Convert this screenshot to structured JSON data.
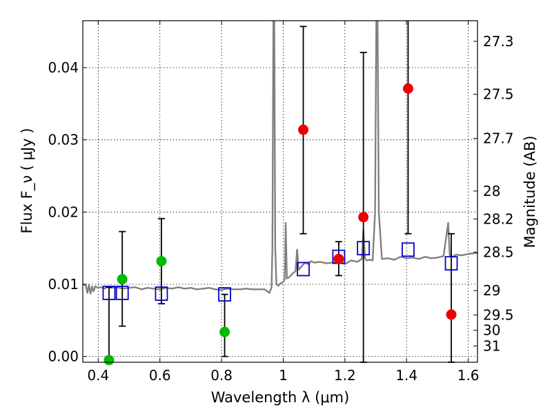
{
  "chart_data": {
    "type": "scatter",
    "title": "",
    "xlabel": "Wavelength  λ (μm)",
    "ylabel": "Flux  F_ν  ( μJy )",
    "ylabel_right": "Magnitude (AB)",
    "xlim": [
      0.35,
      1.63
    ],
    "ylim": [
      -0.0008,
      0.0465
    ],
    "grid": true,
    "x_ticks": [
      0.4,
      0.6,
      0.8,
      1.0,
      1.2,
      1.4,
      1.6
    ],
    "x_tick_labels": [
      "0.4",
      "0.6",
      "0.8",
      "1",
      "1.2",
      "1.4",
      "1.6"
    ],
    "y_ticks": [
      0.0,
      0.01,
      0.02,
      0.03,
      0.04
    ],
    "y_tick_labels": [
      "0.00",
      "0.01",
      "0.02",
      "0.03",
      "0.04"
    ],
    "mag_ticks": [
      {
        "label": "27.3",
        "flux": 0.04365
      },
      {
        "label": "27.5",
        "flux": 0.03631
      },
      {
        "label": "27.7",
        "flux": 0.0302
      },
      {
        "label": "28",
        "flux": 0.02291
      },
      {
        "label": "28.2",
        "flux": 0.01905
      },
      {
        "label": "28.5",
        "flux": 0.01445
      },
      {
        "label": "29",
        "flux": 0.00912
      },
      {
        "label": "29.5",
        "flux": 0.00575
      },
      {
        "label": "30",
        "flux": 0.00363
      },
      {
        "label": "31",
        "flux": 0.00145
      }
    ],
    "series": [
      {
        "name": "model_spectrum",
        "kind": "line",
        "color": "#808080",
        "x": [
          0.35,
          0.36,
          0.365,
          0.37,
          0.375,
          0.38,
          0.385,
          0.39,
          0.4,
          0.41,
          0.42,
          0.43,
          0.44,
          0.46,
          0.48,
          0.5,
          0.52,
          0.54,
          0.56,
          0.58,
          0.6,
          0.62,
          0.64,
          0.66,
          0.68,
          0.7,
          0.72,
          0.74,
          0.76,
          0.78,
          0.8,
          0.82,
          0.84,
          0.86,
          0.88,
          0.9,
          0.92,
          0.94,
          0.955,
          0.962,
          0.965,
          0.968,
          0.971,
          0.974,
          0.978,
          0.985,
          0.99,
          1.0,
          1.005,
          1.008,
          1.012,
          1.02,
          1.03,
          1.04,
          1.045,
          1.05,
          1.06,
          1.07,
          1.08,
          1.09,
          1.1,
          1.12,
          1.14,
          1.16,
          1.18,
          1.2,
          1.22,
          1.24,
          1.255,
          1.26,
          1.265,
          1.27,
          1.28,
          1.29,
          1.298,
          1.302,
          1.306,
          1.31,
          1.32,
          1.34,
          1.36,
          1.38,
          1.4,
          1.42,
          1.44,
          1.46,
          1.48,
          1.5,
          1.52,
          1.53,
          1.535,
          1.54,
          1.55,
          1.56,
          1.58,
          1.6,
          1.62,
          1.63
        ],
        "y": [
          0.01,
          0.0098,
          0.0088,
          0.0099,
          0.0087,
          0.0097,
          0.009,
          0.0097,
          0.0095,
          0.0096,
          0.0094,
          0.0096,
          0.0095,
          0.0096,
          0.0094,
          0.0095,
          0.0096,
          0.0093,
          0.0095,
          0.0094,
          0.0093,
          0.0095,
          0.0094,
          0.0096,
          0.0094,
          0.0095,
          0.0093,
          0.0094,
          0.0095,
          0.0093,
          0.0092,
          0.0094,
          0.0093,
          0.0093,
          0.0094,
          0.0093,
          0.0093,
          0.0093,
          0.0088,
          0.0095,
          0.015,
          0.0465,
          0.0465,
          0.015,
          0.01,
          0.0098,
          0.0101,
          0.0103,
          0.0107,
          0.0185,
          0.0108,
          0.011,
          0.0115,
          0.0118,
          0.0148,
          0.012,
          0.0125,
          0.013,
          0.0128,
          0.0132,
          0.013,
          0.0131,
          0.0129,
          0.013,
          0.0132,
          0.0128,
          0.0133,
          0.0131,
          0.0135,
          0.0175,
          0.0136,
          0.0133,
          0.0134,
          0.0133,
          0.02,
          0.0465,
          0.0465,
          0.02,
          0.0135,
          0.0136,
          0.0134,
          0.0138,
          0.0136,
          0.0137,
          0.0135,
          0.0138,
          0.0136,
          0.0137,
          0.0139,
          0.017,
          0.0185,
          0.014,
          0.0138,
          0.0141,
          0.014,
          0.0142,
          0.0143,
          0.0143
        ]
      },
      {
        "name": "model_band_flux",
        "kind": "open_square",
        "color": "#0000cc",
        "x": [
          0.435,
          0.478,
          0.605,
          0.81,
          1.065,
          1.18,
          1.26,
          1.405,
          1.545
        ],
        "y": [
          0.0088,
          0.0088,
          0.0087,
          0.0086,
          0.0121,
          0.0138,
          0.015,
          0.0148,
          0.0129
        ]
      },
      {
        "name": "detections",
        "kind": "point",
        "color": "#00bb00",
        "x": [
          0.435,
          0.478,
          0.605,
          0.81
        ],
        "y": [
          -0.0005,
          0.0107,
          0.0132,
          0.0034
        ],
        "err_low": [
          0.0005,
          0.0065,
          0.0059,
          0.0034
        ],
        "err_high": [
          0.0101,
          0.0066,
          0.0059,
          0.0052
        ]
      },
      {
        "name": "upper_limits",
        "kind": "point",
        "color": "#ee0000",
        "x": [
          1.065,
          1.18,
          1.26,
          1.405,
          1.545
        ],
        "y": [
          0.0314,
          0.0135,
          0.0193,
          0.0371,
          0.0058
        ],
        "err_low": [
          0.0144,
          0.0023,
          0.0201,
          0.0201,
          0.0066
        ],
        "err_high": [
          0.0143,
          0.0024,
          0.0228,
          0.0139,
          0.0112
        ]
      }
    ]
  }
}
